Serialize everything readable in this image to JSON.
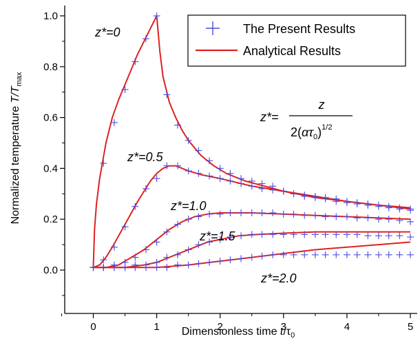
{
  "chart_data": {
    "type": "line",
    "xlabel_main": "Dimensionless time ",
    "xlabel_var": "t",
    "xlabel_tau": "/τ",
    "xlabel_sub": "0",
    "ylabel_main": "Normalized temperature ",
    "ylabel_var": "T/T",
    "ylabel_sub": "max",
    "xlim": [
      -0.5,
      5.1
    ],
    "ylim": [
      -0.1,
      1.05
    ],
    "x_ticks": [
      "0",
      "1",
      "2",
      "3",
      "4",
      "5"
    ],
    "y_ticks": [
      "0.0",
      "0.2",
      "0.4",
      "0.6",
      "0.8",
      "1.0"
    ],
    "grid": false,
    "legend": {
      "position": "top-right",
      "items": [
        {
          "label": "The Present Results",
          "marker": "plus",
          "color": "#4a4adf"
        },
        {
          "label": "Analytical Results",
          "marker": "line",
          "color": "#e02020"
        }
      ]
    },
    "formula": {
      "lhs": "z*=",
      "numerator": "z",
      "den_pre": "2(",
      "den_alpha": "ατ",
      "den_sub": "0",
      "den_close": ")",
      "den_sup": "1/2"
    },
    "series": [
      {
        "label": "z*=0",
        "analytical": [
          [
            0,
            0.01
          ],
          [
            0.02,
            0.16
          ],
          [
            0.05,
            0.26
          ],
          [
            0.1,
            0.36
          ],
          [
            0.15,
            0.43
          ],
          [
            0.2,
            0.5
          ],
          [
            0.3,
            0.6
          ],
          [
            0.4,
            0.67
          ],
          [
            0.5,
            0.73
          ],
          [
            0.6,
            0.79
          ],
          [
            0.7,
            0.85
          ],
          [
            0.8,
            0.9
          ],
          [
            0.9,
            0.95
          ],
          [
            1.0,
            1.0
          ],
          [
            1.05,
            0.86
          ],
          [
            1.1,
            0.76
          ],
          [
            1.2,
            0.66
          ],
          [
            1.3,
            0.6
          ],
          [
            1.4,
            0.55
          ],
          [
            1.5,
            0.51
          ],
          [
            1.7,
            0.45
          ],
          [
            1.9,
            0.41
          ],
          [
            2.1,
            0.38
          ],
          [
            2.4,
            0.35
          ],
          [
            2.7,
            0.33
          ],
          [
            3.0,
            0.31
          ],
          [
            3.5,
            0.29
          ],
          [
            4.0,
            0.27
          ],
          [
            4.5,
            0.255
          ],
          [
            5.0,
            0.245
          ]
        ],
        "present": [
          [
            0,
            0.01
          ],
          [
            0.16,
            0.42
          ],
          [
            0.33,
            0.58
          ],
          [
            0.5,
            0.71
          ],
          [
            0.66,
            0.82
          ],
          [
            0.83,
            0.91
          ],
          [
            1.0,
            1.0
          ],
          [
            1.16,
            0.69
          ],
          [
            1.33,
            0.57
          ],
          [
            1.5,
            0.51
          ],
          [
            1.66,
            0.47
          ],
          [
            1.83,
            0.43
          ],
          [
            2.0,
            0.4
          ],
          [
            2.16,
            0.38
          ],
          [
            2.33,
            0.36
          ],
          [
            2.5,
            0.35
          ],
          [
            2.66,
            0.34
          ],
          [
            2.83,
            0.33
          ],
          [
            3.0,
            0.31
          ],
          [
            3.16,
            0.3
          ],
          [
            3.33,
            0.295
          ],
          [
            3.5,
            0.29
          ],
          [
            3.66,
            0.285
          ],
          [
            3.83,
            0.28
          ],
          [
            4.0,
            0.27
          ],
          [
            4.16,
            0.265
          ],
          [
            4.33,
            0.26
          ],
          [
            4.5,
            0.255
          ],
          [
            4.66,
            0.25
          ],
          [
            4.83,
            0.245
          ],
          [
            5.0,
            0.24
          ]
        ]
      },
      {
        "label": "z*=0.5",
        "analytical": [
          [
            0,
            0.01
          ],
          [
            0.1,
            0.02
          ],
          [
            0.2,
            0.05
          ],
          [
            0.3,
            0.09
          ],
          [
            0.5,
            0.18
          ],
          [
            0.7,
            0.27
          ],
          [
            0.9,
            0.35
          ],
          [
            1.0,
            0.38
          ],
          [
            1.1,
            0.4
          ],
          [
            1.2,
            0.41
          ],
          [
            1.3,
            0.41
          ],
          [
            1.5,
            0.39
          ],
          [
            1.7,
            0.375
          ],
          [
            2.0,
            0.36
          ],
          [
            2.5,
            0.33
          ],
          [
            3.0,
            0.31
          ],
          [
            3.5,
            0.285
          ],
          [
            4.0,
            0.27
          ],
          [
            4.5,
            0.255
          ],
          [
            5.0,
            0.24
          ]
        ],
        "present": [
          [
            0,
            0.01
          ],
          [
            0.16,
            0.04
          ],
          [
            0.33,
            0.09
          ],
          [
            0.5,
            0.17
          ],
          [
            0.66,
            0.25
          ],
          [
            0.83,
            0.32
          ],
          [
            1.0,
            0.36
          ],
          [
            1.16,
            0.41
          ],
          [
            1.33,
            0.41
          ],
          [
            1.5,
            0.39
          ],
          [
            1.66,
            0.38
          ],
          [
            1.83,
            0.37
          ],
          [
            2.0,
            0.36
          ],
          [
            2.16,
            0.35
          ],
          [
            2.33,
            0.34
          ],
          [
            2.5,
            0.33
          ],
          [
            2.66,
            0.32
          ],
          [
            2.83,
            0.315
          ],
          [
            3.0,
            0.31
          ],
          [
            3.16,
            0.3
          ],
          [
            3.33,
            0.29
          ],
          [
            3.5,
            0.285
          ],
          [
            3.66,
            0.28
          ],
          [
            3.83,
            0.27
          ],
          [
            4.0,
            0.265
          ],
          [
            4.16,
            0.26
          ],
          [
            4.33,
            0.255
          ],
          [
            4.5,
            0.25
          ],
          [
            4.66,
            0.245
          ],
          [
            4.83,
            0.24
          ],
          [
            5.0,
            0.235
          ]
        ]
      },
      {
        "label": "z*=1.0",
        "analytical": [
          [
            0,
            0.01
          ],
          [
            0.2,
            0.01
          ],
          [
            0.4,
            0.02
          ],
          [
            0.6,
            0.05
          ],
          [
            0.8,
            0.08
          ],
          [
            1.0,
            0.12
          ],
          [
            1.2,
            0.16
          ],
          [
            1.4,
            0.19
          ],
          [
            1.6,
            0.21
          ],
          [
            1.8,
            0.22
          ],
          [
            2.0,
            0.225
          ],
          [
            2.5,
            0.225
          ],
          [
            3.0,
            0.22
          ],
          [
            3.5,
            0.215
          ],
          [
            4.0,
            0.21
          ],
          [
            4.5,
            0.205
          ],
          [
            5.0,
            0.2
          ]
        ],
        "present": [
          [
            0,
            0.01
          ],
          [
            0.16,
            0.01
          ],
          [
            0.33,
            0.02
          ],
          [
            0.5,
            0.03
          ],
          [
            0.66,
            0.05
          ],
          [
            0.83,
            0.08
          ],
          [
            1.0,
            0.11
          ],
          [
            1.16,
            0.15
          ],
          [
            1.33,
            0.18
          ],
          [
            1.5,
            0.2
          ],
          [
            1.66,
            0.21
          ],
          [
            1.83,
            0.22
          ],
          [
            2.0,
            0.22
          ],
          [
            2.16,
            0.225
          ],
          [
            2.33,
            0.225
          ],
          [
            2.5,
            0.225
          ],
          [
            2.66,
            0.225
          ],
          [
            2.83,
            0.225
          ],
          [
            3.0,
            0.22
          ],
          [
            3.16,
            0.22
          ],
          [
            3.33,
            0.215
          ],
          [
            3.5,
            0.215
          ],
          [
            3.66,
            0.21
          ],
          [
            3.83,
            0.21
          ],
          [
            4.0,
            0.21
          ],
          [
            4.16,
            0.205
          ],
          [
            4.33,
            0.205
          ],
          [
            4.5,
            0.2
          ],
          [
            4.66,
            0.2
          ],
          [
            4.83,
            0.195
          ],
          [
            5.0,
            0.19
          ]
        ]
      },
      {
        "label": "z*=1.5",
        "analytical": [
          [
            0,
            0.01
          ],
          [
            0.5,
            0.01
          ],
          [
            0.8,
            0.02
          ],
          [
            1.0,
            0.03
          ],
          [
            1.2,
            0.05
          ],
          [
            1.4,
            0.07
          ],
          [
            1.6,
            0.09
          ],
          [
            1.8,
            0.11
          ],
          [
            2.0,
            0.12
          ],
          [
            2.3,
            0.135
          ],
          [
            2.6,
            0.14
          ],
          [
            3.0,
            0.145
          ],
          [
            3.5,
            0.15
          ],
          [
            4.0,
            0.15
          ],
          [
            4.5,
            0.15
          ],
          [
            5.0,
            0.15
          ]
        ],
        "present": [
          [
            0,
            0.01
          ],
          [
            0.16,
            0.01
          ],
          [
            0.33,
            0.01
          ],
          [
            0.5,
            0.01
          ],
          [
            0.66,
            0.02
          ],
          [
            0.83,
            0.02
          ],
          [
            1.0,
            0.03
          ],
          [
            1.16,
            0.05
          ],
          [
            1.33,
            0.06
          ],
          [
            1.5,
            0.08
          ],
          [
            1.66,
            0.1
          ],
          [
            1.83,
            0.11
          ],
          [
            2.0,
            0.12
          ],
          [
            2.16,
            0.13
          ],
          [
            2.33,
            0.135
          ],
          [
            2.5,
            0.14
          ],
          [
            2.66,
            0.14
          ],
          [
            2.83,
            0.14
          ],
          [
            3.0,
            0.14
          ],
          [
            3.16,
            0.14
          ],
          [
            3.33,
            0.14
          ],
          [
            3.5,
            0.14
          ],
          [
            3.66,
            0.14
          ],
          [
            3.83,
            0.14
          ],
          [
            4.0,
            0.14
          ],
          [
            4.16,
            0.14
          ],
          [
            4.33,
            0.135
          ],
          [
            4.5,
            0.135
          ],
          [
            4.66,
            0.135
          ],
          [
            4.83,
            0.135
          ],
          [
            5.0,
            0.13
          ]
        ]
      },
      {
        "label": "z*=2.0",
        "analytical": [
          [
            0,
            0.01
          ],
          [
            1.0,
            0.01
          ],
          [
            1.5,
            0.02
          ],
          [
            2.0,
            0.035
          ],
          [
            2.5,
            0.05
          ],
          [
            3.0,
            0.065
          ],
          [
            3.5,
            0.08
          ],
          [
            4.0,
            0.09
          ],
          [
            4.5,
            0.1
          ],
          [
            5.0,
            0.11
          ]
        ],
        "present": [
          [
            0,
            0.01
          ],
          [
            0.16,
            0.01
          ],
          [
            0.33,
            0.01
          ],
          [
            0.5,
            0.01
          ],
          [
            0.66,
            0.01
          ],
          [
            0.83,
            0.01
          ],
          [
            1.0,
            0.01
          ],
          [
            1.16,
            0.01
          ],
          [
            1.33,
            0.02
          ],
          [
            1.5,
            0.02
          ],
          [
            1.66,
            0.025
          ],
          [
            1.83,
            0.03
          ],
          [
            2.0,
            0.035
          ],
          [
            2.16,
            0.04
          ],
          [
            2.33,
            0.045
          ],
          [
            2.5,
            0.05
          ],
          [
            2.66,
            0.055
          ],
          [
            2.83,
            0.06
          ],
          [
            3.0,
            0.06
          ],
          [
            3.16,
            0.06
          ],
          [
            3.33,
            0.06
          ],
          [
            3.5,
            0.06
          ],
          [
            3.66,
            0.06
          ],
          [
            3.83,
            0.06
          ],
          [
            4.0,
            0.06
          ],
          [
            4.16,
            0.06
          ],
          [
            4.33,
            0.06
          ],
          [
            4.5,
            0.06
          ],
          [
            4.66,
            0.06
          ],
          [
            4.83,
            0.06
          ],
          [
            5.0,
            0.06
          ]
        ]
      }
    ]
  }
}
